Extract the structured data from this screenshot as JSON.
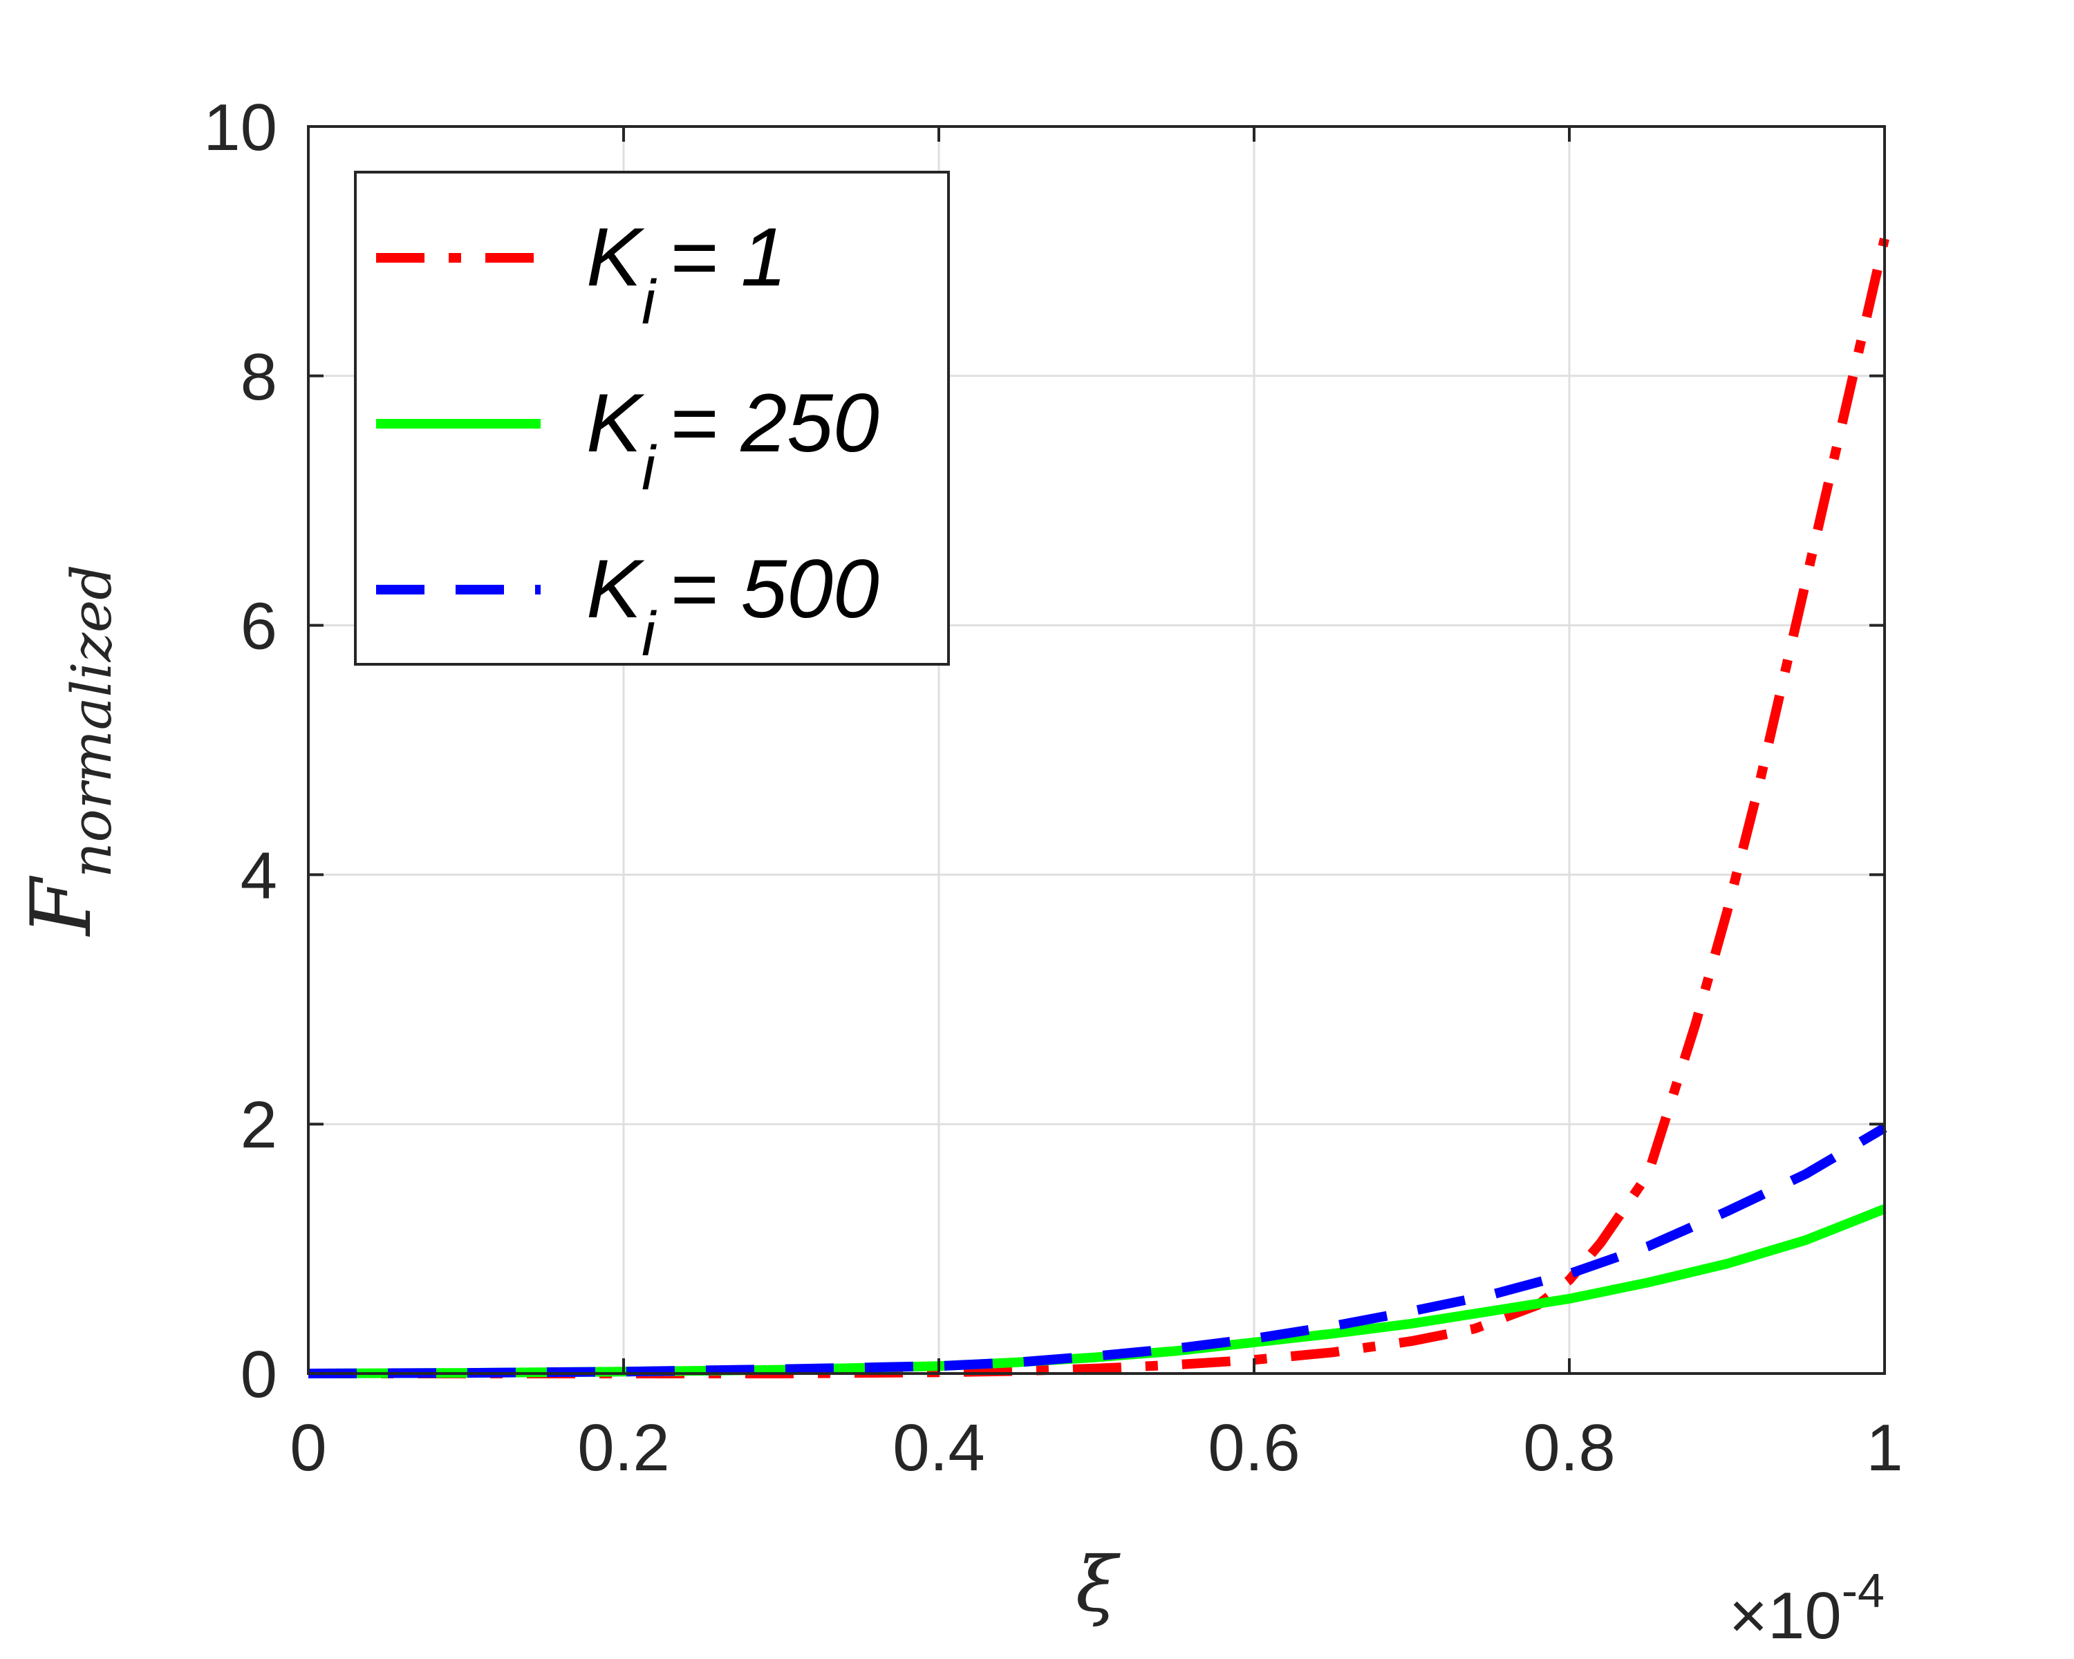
{
  "chart_data": {
    "type": "line",
    "title": "",
    "xlabel": "ξ",
    "ylabel": "F",
    "ylabel_subscript": "normalized",
    "x_multiplier": {
      "base": "×10",
      "exponent": "-4"
    },
    "xlim": [
      0,
      1
    ],
    "ylim": [
      0,
      10
    ],
    "x_ticks": [
      0,
      0.2,
      0.4,
      0.6,
      0.8,
      1
    ],
    "x_tick_labels": [
      "0",
      "0.2",
      "0.4",
      "0.6",
      "0.8",
      "1"
    ],
    "y_ticks": [
      0,
      2,
      4,
      6,
      8,
      10
    ],
    "y_tick_labels": [
      "0",
      "2",
      "4",
      "6",
      "8",
      "10"
    ],
    "grid": true,
    "legend_position": "top-left",
    "series": [
      {
        "name": "= 1",
        "legend_symbol": "K",
        "legend_subscript": "i",
        "color": "#ff0000",
        "style": "dashdot",
        "x": [
          0,
          0.1,
          0.2,
          0.3,
          0.4,
          0.45,
          0.5,
          0.55,
          0.6,
          0.65,
          0.7,
          0.74,
          0.78,
          0.8,
          0.82,
          0.85,
          0.88,
          0.9,
          0.92,
          0.94,
          0.96,
          0.98,
          1.0
        ],
        "y": [
          0,
          0,
          0,
          0,
          0.01,
          0.02,
          0.04,
          0.07,
          0.11,
          0.17,
          0.26,
          0.36,
          0.55,
          0.75,
          1.05,
          1.6,
          2.8,
          3.7,
          4.7,
          5.8,
          6.9,
          8.0,
          9.1
        ]
      },
      {
        "name": "= 250",
        "legend_symbol": "K",
        "legend_subscript": "i",
        "color": "#00ff00",
        "style": "solid",
        "x": [
          0,
          0.1,
          0.2,
          0.3,
          0.4,
          0.45,
          0.5,
          0.55,
          0.6,
          0.65,
          0.7,
          0.75,
          0.8,
          0.85,
          0.9,
          0.95,
          1.0
        ],
        "y": [
          0,
          0.005,
          0.015,
          0.03,
          0.06,
          0.09,
          0.13,
          0.18,
          0.25,
          0.32,
          0.4,
          0.5,
          0.6,
          0.73,
          0.88,
          1.07,
          1.32
        ]
      },
      {
        "name": "= 500",
        "legend_symbol": "K",
        "legend_subscript": "i",
        "color": "#0000ff",
        "style": "dashed",
        "x": [
          0,
          0.1,
          0.2,
          0.3,
          0.4,
          0.45,
          0.5,
          0.55,
          0.6,
          0.65,
          0.7,
          0.75,
          0.8,
          0.85,
          0.9,
          0.95,
          1.0
        ],
        "y": [
          0,
          0.005,
          0.015,
          0.035,
          0.06,
          0.09,
          0.14,
          0.2,
          0.28,
          0.38,
          0.5,
          0.63,
          0.8,
          1.02,
          1.3,
          1.6,
          1.97
        ]
      }
    ]
  }
}
